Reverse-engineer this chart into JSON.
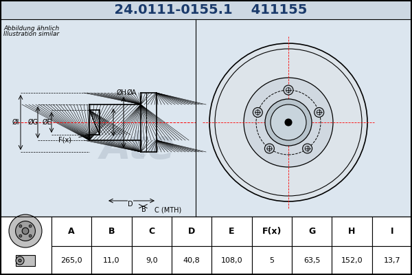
{
  "part_number": "24.0111-0155.1",
  "article_number": "411155",
  "note_line1": "Abbildung ähnlich",
  "note_line2": "Illustration similar",
  "table_headers": [
    "A",
    "B",
    "C",
    "D",
    "E",
    "F(x)",
    "G",
    "H",
    "I"
  ],
  "table_values": [
    "265,0",
    "11,0",
    "9,0",
    "40,8",
    "108,0",
    "5",
    "63,5",
    "152,0",
    "13,7"
  ],
  "bg_color": "#cdd8e3",
  "drawing_bg": "#dce6ef",
  "table_bg": "#ffffff",
  "header_color": "#000000",
  "line_color": "#000000",
  "title_color": "#1a3a6b",
  "dim_labels": [
    "I",
    "G",
    "E",
    "H",
    "A",
    "F(x)",
    "B",
    "C (MTH)",
    "D"
  ]
}
